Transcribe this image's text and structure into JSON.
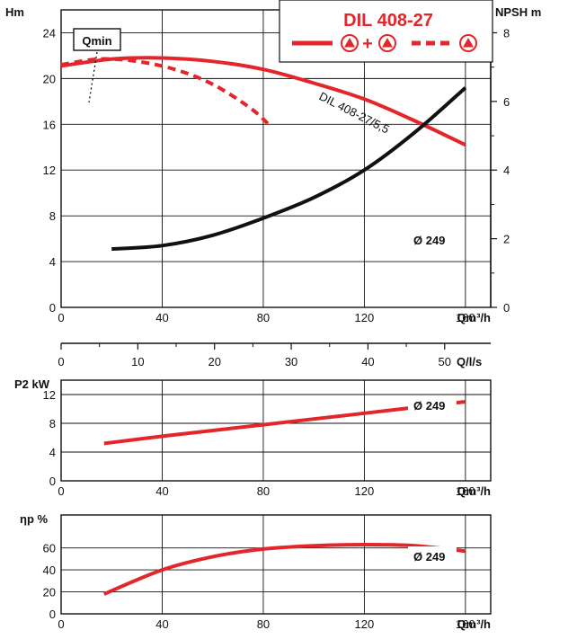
{
  "colors": {
    "red": "#e3262a",
    "black": "#111111"
  },
  "chart_data": [
    {
      "id": "head",
      "type": "line",
      "legend": {
        "title": "DIL 408-27",
        "solid_mark": "+",
        "icon": "pump-triangle-icon",
        "placement": "top-right"
      },
      "ylabel_left": "Hm",
      "ylabel_right": "NPSH m",
      "xlabel": "Qm³/h",
      "xlim": [
        0,
        170
      ],
      "ylim": [
        0,
        26
      ],
      "y2lim": [
        0,
        8.667
      ],
      "x_ticks": [
        "0",
        "40",
        "80",
        "120",
        "160"
      ],
      "y_ticks": [
        "0",
        "4",
        "8",
        "12",
        "16",
        "20",
        "24"
      ],
      "y2_ticks": [
        "0",
        "2",
        "4",
        "6",
        "8"
      ],
      "annotations": {
        "qmin": "Qmin",
        "curve_label": "DIL 408-27/5,5",
        "npsh_label": "Ø 249"
      },
      "series": [
        {
          "style": "solid",
          "color": "red",
          "x": [
            0,
            20,
            40,
            60,
            80,
            100,
            120,
            140,
            160
          ],
          "y": [
            21.1,
            21.7,
            21.8,
            21.5,
            20.8,
            19.6,
            18.2,
            16.3,
            14.2
          ]
        },
        {
          "style": "dashed",
          "color": "red",
          "x": [
            0,
            15,
            30,
            45,
            60,
            75,
            83
          ],
          "y": [
            21.2,
            21.7,
            21.5,
            20.8,
            19.5,
            17.4,
            15.8
          ]
        },
        {
          "style": "solid",
          "color": "black",
          "axis": "right",
          "x": [
            20,
            40,
            60,
            80,
            100,
            120,
            140,
            160
          ],
          "y": [
            1.7,
            1.8,
            2.1,
            2.6,
            3.2,
            4.0,
            5.1,
            6.4
          ]
        }
      ]
    },
    {
      "id": "flow_ls",
      "type": "axis",
      "xlabel": "Q/l/s",
      "xlim": [
        0,
        56
      ],
      "x_ticks": [
        "0",
        "10",
        "20",
        "30",
        "40",
        "50"
      ]
    },
    {
      "id": "power",
      "type": "line",
      "ylabel": "P2 kW",
      "xlabel": "Qm³/h",
      "xlim": [
        0,
        170
      ],
      "ylim": [
        0,
        14
      ],
      "x_ticks": [
        "0",
        "40",
        "80",
        "120",
        "160"
      ],
      "y_ticks": [
        "0",
        "4",
        "8",
        "12"
      ],
      "series_label": "Ø 249",
      "series": [
        {
          "style": "solid",
          "color": "red",
          "x": [
            17,
            40,
            80,
            120,
            160
          ],
          "y": [
            5.2,
            6.2,
            7.8,
            9.4,
            11.0
          ]
        }
      ]
    },
    {
      "id": "efficiency",
      "type": "line",
      "ylabel": "ηp %",
      "xlabel": "Qm³/h",
      "xlim": [
        0,
        170
      ],
      "ylim": [
        0,
        90
      ],
      "x_ticks": [
        "0",
        "40",
        "80",
        "120",
        "160"
      ],
      "y_ticks": [
        "0",
        "20",
        "40",
        "60"
      ],
      "series_label": "Ø 249",
      "series": [
        {
          "style": "solid",
          "color": "red",
          "x": [
            17,
            40,
            60,
            80,
            100,
            120,
            140,
            160
          ],
          "y": [
            18,
            40,
            52,
            59,
            62,
            63,
            62,
            57
          ]
        }
      ]
    }
  ]
}
